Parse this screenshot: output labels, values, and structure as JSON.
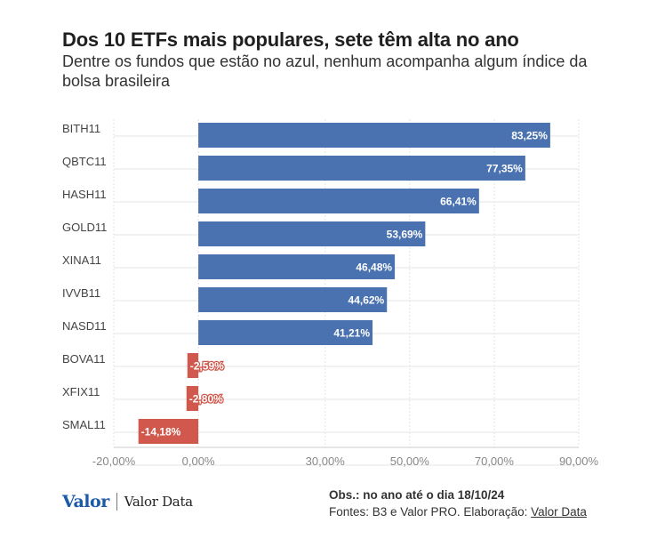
{
  "header": {
    "title": "Dos 10 ETFs mais populares, sete têm alta no ano",
    "subtitle": "Dentre os fundos que estão no azul, nenhum acompanha algum índice da bolsa brasileira"
  },
  "chart_data": {
    "type": "bar",
    "orientation": "horizontal",
    "categories": [
      "BITH11",
      "QBTC11",
      "HASH11",
      "GOLD11",
      "XINA11",
      "IVVB11",
      "NASD11",
      "BOVA11",
      "XFIX11",
      "SMAL11"
    ],
    "values": [
      83.25,
      77.35,
      66.41,
      53.69,
      46.48,
      44.62,
      41.21,
      -2.59,
      -2.8,
      -14.18
    ],
    "value_labels": [
      "83,25%",
      "77,35%",
      "66,41%",
      "53,69%",
      "46,48%",
      "44,62%",
      "41,21%",
      "-2,59%",
      "-2,80%",
      "-14,18%"
    ],
    "x_ticks": [
      -20,
      0,
      30,
      50,
      70,
      90
    ],
    "x_tick_labels": [
      "-20,00%",
      "0,00%",
      "30,00%",
      "50,00%",
      "70,00%",
      "90,00%"
    ],
    "xlim": [
      -20,
      90
    ],
    "xlabel": "",
    "ylabel": "",
    "grid": true,
    "colors": {
      "positive": "#4a72b0",
      "negative": "#d0584c"
    }
  },
  "footer": {
    "logo_valor": "Valor",
    "logo_data": "Valor Data",
    "obs": "Obs.: no ano até o dia 18/10/24",
    "sources_prefix": "Fontes: B3 e Valor PRO. Elaboração: ",
    "sources_link": "Valor Data"
  }
}
